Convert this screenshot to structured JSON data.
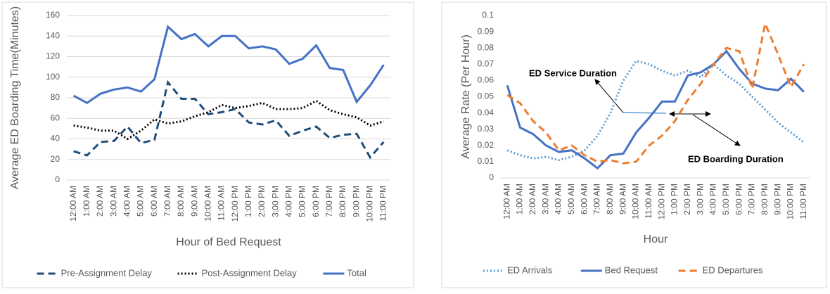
{
  "chart_data": [
    {
      "type": "line",
      "y_label": "Average ED Boarding Time(Minutes)",
      "x_label": "Hour of Bed Request",
      "categories": [
        "12:00 AM",
        "1:00 AM",
        "2:00 AM",
        "3:00 AM",
        "4:00 AM",
        "5:00 AM",
        "6:00 AM",
        "7:00 AM",
        "8:00 AM",
        "9:00 AM",
        "10:00 AM",
        "11:00 AM",
        "12:00 PM",
        "1:00 PM",
        "2:00 PM",
        "3:00 PM",
        "4:00 PM",
        "5:00 PM",
        "6:00 PM",
        "7:00 PM",
        "8:00 PM",
        "9:00 PM",
        "10:00 PM",
        "11:00 PM"
      ],
      "series": [
        {
          "name": "Pre-Assignment Delay",
          "color": "#1f4e79",
          "line_style": "dashed",
          "values": [
            28,
            24,
            37,
            38,
            52,
            36,
            39,
            95,
            79,
            79,
            64,
            66,
            69,
            56,
            54,
            58,
            43,
            48,
            52,
            41,
            44,
            45,
            22,
            37
          ]
        },
        {
          "name": "Post-Assignment Delay",
          "color": "#000000",
          "line_style": "dotted",
          "values": [
            53,
            51,
            48,
            48,
            40,
            48,
            59,
            55,
            57,
            62,
            66,
            73,
            70,
            72,
            75,
            69,
            69,
            70,
            77,
            68,
            64,
            61,
            53,
            57
          ]
        },
        {
          "name": "Total",
          "color": "#4472c4",
          "line_style": "solid",
          "values": [
            82,
            75,
            84,
            88,
            90,
            86,
            98,
            149,
            137,
            142,
            130,
            140,
            140,
            128,
            130,
            127,
            113,
            118,
            131,
            109,
            107,
            76,
            92,
            112
          ]
        }
      ],
      "ylim": [
        0,
        160
      ],
      "yticks": [
        0,
        20,
        40,
        60,
        80,
        100,
        120,
        140,
        160
      ],
      "grid": true,
      "legend": "bottom"
    },
    {
      "type": "line",
      "y_label": "Average Rate (Per Hour)",
      "x_label": "Hour",
      "categories": [
        "12:00 AM",
        "1:00 AM",
        "2:00 AM",
        "3:00 AM",
        "4:00 AM",
        "5:00 AM",
        "6:00 AM",
        "7:00 AM",
        "8:00 AM",
        "9:00 AM",
        "10:00 AM",
        "11:00 AM",
        "12:00 PM",
        "1:00 PM",
        "2:00 PM",
        "3:00 PM",
        "4:00 PM",
        "5:00 PM",
        "6:00 PM",
        "7:00 PM",
        "8:00 PM",
        "9:00 PM",
        "10:00 PM",
        "11:00 PM"
      ],
      "series": [
        {
          "name": "ED Arrivals",
          "color": "#5b9bd5",
          "line_style": "dotted",
          "values": [
            0.017,
            0.014,
            0.012,
            0.013,
            0.011,
            0.013,
            0.017,
            0.026,
            0.04,
            0.06,
            0.072,
            0.07,
            0.066,
            0.063,
            0.066,
            0.062,
            0.07,
            0.063,
            0.058,
            0.05,
            0.042,
            0.034,
            0.028,
            0.022
          ]
        },
        {
          "name": "Bed Request",
          "color": "#4472c4",
          "line_style": "solid",
          "values": [
            0.057,
            0.031,
            0.027,
            0.02,
            0.016,
            0.017,
            0.012,
            0.006,
            0.014,
            0.015,
            0.028,
            0.037,
            0.047,
            0.047,
            0.063,
            0.065,
            0.07,
            0.078,
            0.067,
            0.058,
            0.055,
            0.054,
            0.061,
            0.053
          ]
        },
        {
          "name": "ED Departures",
          "color": "#ed7d31",
          "line_style": "dashed",
          "values": [
            0.051,
            0.046,
            0.035,
            0.028,
            0.017,
            0.02,
            0.014,
            0.01,
            0.011,
            0.009,
            0.01,
            0.02,
            0.026,
            0.035,
            0.048,
            0.058,
            0.07,
            0.08,
            0.078,
            0.055,
            0.095,
            0.076,
            0.056,
            0.07
          ]
        }
      ],
      "ylim": [
        0,
        0.1
      ],
      "yticks": [
        0,
        0.01,
        0.02,
        0.03,
        0.04,
        0.05,
        0.06,
        0.07,
        0.08,
        0.09,
        0.1
      ],
      "grid": false,
      "legend": "bottom",
      "annotations": [
        {
          "text": "ED Service Duration"
        },
        {
          "text": "ED Boarding Duration"
        }
      ]
    }
  ]
}
